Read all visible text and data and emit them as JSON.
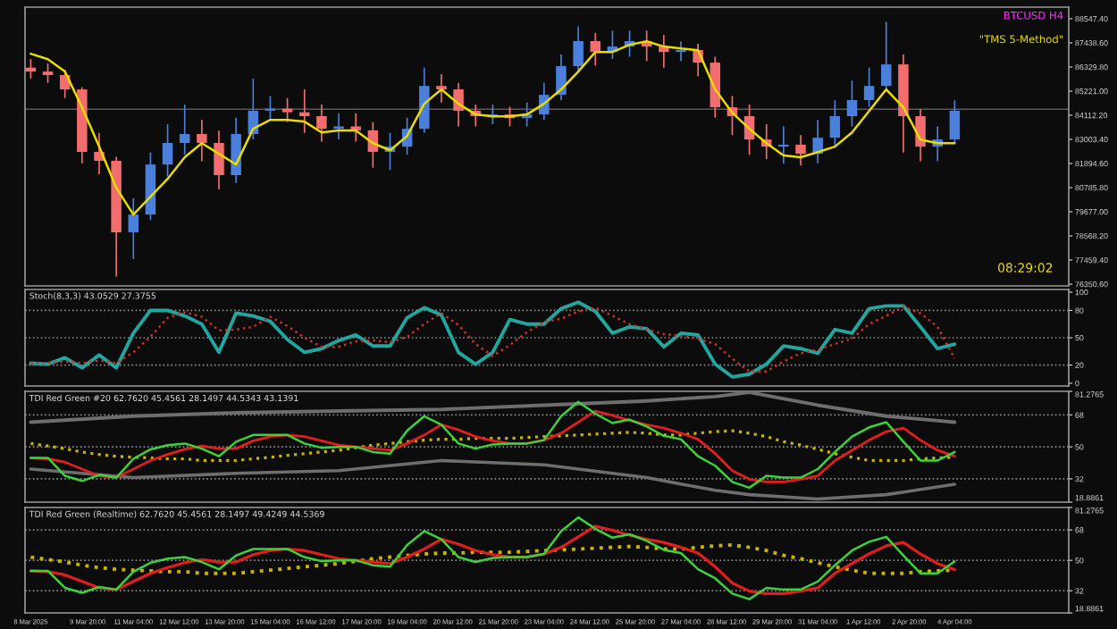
{
  "chart_data": [
    {
      "type": "candlestick",
      "x": [
        "2025-03-08T04:00",
        "2025-03-08T16:00",
        "2025-03-09T04:00",
        "2025-03-09T16:00",
        "2025-03-10T04:00",
        "2025-03-10T16:00",
        "2025-03-11T04:00",
        "2025-03-11T16:00",
        "2025-03-12T04:00",
        "2025-03-12T16:00",
        "2025-03-13T04:00",
        "2025-03-13T16:00",
        "2025-03-14T04:00",
        "2025-03-14T16:00",
        "2025-03-15T04:00",
        "2025-03-15T16:00",
        "2025-03-16T04:00",
        "2025-03-16T16:00",
        "2025-03-17T04:00",
        "2025-03-17T16:00",
        "2025-03-18T04:00",
        "2025-03-18T16:00",
        "2025-03-19T04:00",
        "2025-03-19T16:00",
        "2025-03-20T04:00",
        "2025-03-20T16:00",
        "2025-03-21T04:00",
        "2025-03-21T16:00",
        "2025-03-22T04:00",
        "2025-03-22T16:00",
        "2025-03-23T04:00",
        "2025-03-23T16:00",
        "2025-03-24T04:00",
        "2025-03-24T16:00",
        "2025-03-25T04:00",
        "2025-03-25T16:00",
        "2025-03-26T04:00",
        "2025-03-26T16:00",
        "2025-03-27T04:00",
        "2025-03-27T16:00",
        "2025-03-28T04:00",
        "2025-03-28T16:00",
        "2025-03-29T04:00",
        "2025-03-29T16:00",
        "2025-03-30T04:00",
        "2025-03-30T16:00",
        "2025-03-31T04:00",
        "2025-03-31T16:00",
        "2025-04-01T04:00",
        "2025-04-01T16:00",
        "2025-04-02T04:00",
        "2025-04-02T16:00",
        "2025-04-03T04:00",
        "2025-04-03T16:00",
        "2025-04-04T04:00"
      ],
      "ohlc": [
        [
          86300,
          86700,
          85800,
          86120
        ],
        [
          86120,
          86500,
          85600,
          85960
        ],
        [
          85960,
          86200,
          84900,
          85300
        ],
        [
          85300,
          85400,
          81900,
          82430
        ],
        [
          82430,
          83300,
          81400,
          82020
        ],
        [
          82020,
          82200,
          76700,
          78730
        ],
        [
          78730,
          80300,
          77500,
          79550
        ],
        [
          79550,
          82400,
          79300,
          81850
        ],
        [
          81850,
          83700,
          81300,
          82840
        ],
        [
          82840,
          84600,
          82300,
          83250
        ],
        [
          83250,
          83900,
          82000,
          82840
        ],
        [
          82840,
          83400,
          80700,
          81360
        ],
        [
          81360,
          84000,
          81000,
          83250
        ],
        [
          83250,
          85800,
          83000,
          84320
        ],
        [
          84320,
          85000,
          83900,
          84420
        ],
        [
          84420,
          84900,
          83800,
          84250
        ],
        [
          84250,
          85300,
          83300,
          84070
        ],
        [
          84070,
          84600,
          82900,
          83490
        ],
        [
          83490,
          84200,
          83000,
          83600
        ],
        [
          83600,
          84200,
          82900,
          83420
        ],
        [
          83420,
          83800,
          81700,
          82430
        ],
        [
          82430,
          83300,
          81600,
          82670
        ],
        [
          82670,
          84000,
          82300,
          83490
        ],
        [
          83490,
          86300,
          83300,
          85460
        ],
        [
          85460,
          86000,
          84700,
          85300
        ],
        [
          85300,
          85600,
          83600,
          84320
        ],
        [
          84320,
          84600,
          83600,
          84070
        ],
        [
          84070,
          84600,
          83700,
          84150
        ],
        [
          84150,
          84500,
          83600,
          83980
        ],
        [
          83980,
          84700,
          83600,
          84150
        ],
        [
          84150,
          85600,
          83900,
          85050
        ],
        [
          85050,
          86900,
          84800,
          86370
        ],
        [
          86370,
          88200,
          86100,
          87520
        ],
        [
          87520,
          87900,
          86400,
          87020
        ],
        [
          87020,
          88000,
          86700,
          87270
        ],
        [
          87270,
          88000,
          86800,
          87520
        ],
        [
          87520,
          88000,
          86600,
          87270
        ],
        [
          87270,
          87800,
          86300,
          87020
        ],
        [
          87020,
          87500,
          86600,
          87110
        ],
        [
          87110,
          87400,
          85900,
          86530
        ],
        [
          86530,
          86800,
          84000,
          84480
        ],
        [
          84480,
          85000,
          83200,
          84070
        ],
        [
          84070,
          84600,
          82300,
          83000
        ],
        [
          83000,
          83700,
          82100,
          82670
        ],
        [
          82670,
          83600,
          81900,
          82760
        ],
        [
          82760,
          83200,
          81800,
          82340
        ],
        [
          82340,
          83900,
          81900,
          83080
        ],
        [
          83080,
          84800,
          82700,
          84070
        ],
        [
          84070,
          85700,
          83600,
          84810
        ],
        [
          84810,
          86300,
          84500,
          85460
        ],
        [
          85460,
          88400,
          85200,
          86450
        ],
        [
          86450,
          86900,
          82400,
          84070
        ],
        [
          84070,
          84400,
          82000,
          82670
        ],
        [
          82670,
          83600,
          82000,
          83000
        ],
        [
          83000,
          84800,
          82800,
          84320
        ]
      ],
      "colors": [
        "#f26d6d",
        "#f26d6d",
        "#f26d6d",
        "#f26d6d",
        "#f26d6d",
        "#f26d6d",
        "#4a7fdc",
        "#4a7fdc",
        "#4a7fdc",
        "#4a7fdc",
        "#f26d6d",
        "#f26d6d",
        "#4a7fdc",
        "#4a7fdc",
        "#4a7fdc",
        "#f26d6d",
        "#f26d6d",
        "#f26d6d",
        "#4a7fdc",
        "#f26d6d",
        "#f26d6d",
        "#4a7fdc",
        "#4a7fdc",
        "#4a7fdc",
        "#f26d6d",
        "#f26d6d",
        "#f26d6d",
        "#4a7fdc",
        "#f26d6d",
        "#4a7fdc",
        "#4a7fdc",
        "#4a7fdc",
        "#4a7fdc",
        "#f26d6d",
        "#4a7fdc",
        "#4a7fdc",
        "#f26d6d",
        "#f26d6d",
        "#4a7fdc",
        "#f26d6d",
        "#f26d6d",
        "#f26d6d",
        "#f26d6d",
        "#f26d6d",
        "#4a7fdc",
        "#f26d6d",
        "#4a7fdc",
        "#4a7fdc",
        "#4a7fdc",
        "#4a7fdc",
        "#4a7fdc",
        "#f26d6d",
        "#f26d6d",
        "#4a7fdc",
        "#4a7fdc"
      ],
      "series": [
        {
          "type": "line",
          "color": "#e8dc00",
          "values": [
            86940,
            86690,
            86120,
            84470,
            82670,
            80780,
            79550,
            80370,
            81190,
            82180,
            82830,
            82340,
            81850,
            83490,
            83900,
            83900,
            83820,
            83320,
            83410,
            83410,
            82830,
            82500,
            83160,
            84640,
            85300,
            84640,
            84150,
            84060,
            84060,
            84150,
            84640,
            85300,
            86120,
            87020,
            87020,
            87350,
            87510,
            87270,
            87180,
            87100,
            85300,
            84230,
            83490,
            82830,
            82260,
            82180,
            82420,
            82670,
            83320,
            84310,
            85300,
            84480,
            82990,
            82830,
            82830
          ]
        }
      ],
      "xlim": [
        "2025-03-08T00:00",
        "2025-04-07T12:00"
      ],
      "ylim": [
        76270,
        89080
      ],
      "yticks": [
        {
          "value": 76350.6,
          "label": "76350.60"
        },
        {
          "value": 77459.4,
          "label": "77459.40"
        },
        {
          "value": 78568.2,
          "label": "78568.20"
        },
        {
          "value": 79677.0,
          "label": "79677.00"
        },
        {
          "value": 80785.8,
          "label": "80785.80"
        },
        {
          "value": 81894.6,
          "label": "81894.60"
        },
        {
          "value": 83003.4,
          "label": "83003.40"
        },
        {
          "value": 84112.2,
          "label": "84112.20"
        },
        {
          "value": 85221.0,
          "label": "85221.00"
        },
        {
          "value": 86329.8,
          "label": "86329.80"
        },
        {
          "value": 87438.6,
          "label": "87438.60"
        },
        {
          "value": 88547.4,
          "label": "88547.40"
        }
      ],
      "ref_lines": [
        {
          "axis": "y",
          "value": 84390,
          "color": "#5a5a5a"
        }
      ],
      "tick_labels": "y",
      "annotations": [
        "BTCUSD H4",
        "\"TMS 5-Method\"",
        "08:29:02"
      ]
    },
    {
      "type": "line",
      "title": "Stoch(8,3,3) 43.0529 27.3755",
      "x": [
        "2025-03-08T04:00",
        "2025-03-08T16:00",
        "2025-03-09T04:00",
        "2025-03-09T16:00",
        "2025-03-10T04:00",
        "2025-03-10T16:00",
        "2025-03-11T04:00",
        "2025-03-11T16:00",
        "2025-03-12T04:00",
        "2025-03-12T16:00",
        "2025-03-13T04:00",
        "2025-03-13T16:00",
        "2025-03-14T04:00",
        "2025-03-14T16:00",
        "2025-03-15T04:00",
        "2025-03-15T16:00",
        "2025-03-16T04:00",
        "2025-03-16T16:00",
        "2025-03-17T04:00",
        "2025-03-17T16:00",
        "2025-03-18T04:00",
        "2025-03-18T16:00",
        "2025-03-19T04:00",
        "2025-03-19T16:00",
        "2025-03-20T04:00",
        "2025-03-20T16:00",
        "2025-03-21T04:00",
        "2025-03-21T16:00",
        "2025-03-22T04:00",
        "2025-03-22T16:00",
        "2025-03-23T04:00",
        "2025-03-23T16:00",
        "2025-03-24T04:00",
        "2025-03-24T16:00",
        "2025-03-25T04:00",
        "2025-03-25T16:00",
        "2025-03-26T04:00",
        "2025-03-26T16:00",
        "2025-03-27T04:00",
        "2025-03-27T16:00",
        "2025-03-28T04:00",
        "2025-03-28T16:00",
        "2025-03-29T04:00",
        "2025-03-29T16:00",
        "2025-03-30T04:00",
        "2025-03-30T16:00",
        "2025-03-31T04:00",
        "2025-03-31T16:00",
        "2025-04-01T04:00",
        "2025-04-01T16:00",
        "2025-04-02T04:00",
        "2025-04-02T16:00",
        "2025-04-03T04:00",
        "2025-04-03T16:00",
        "2025-04-04T04:00"
      ],
      "series": [
        {
          "color": "#22a6a0",
          "values": [
            22,
            21,
            28,
            17,
            31,
            17,
            55,
            80,
            80,
            74,
            65,
            34,
            77,
            74,
            68,
            48,
            34,
            38,
            47,
            53,
            41,
            41,
            72,
            83,
            75,
            34,
            21,
            34,
            70,
            65,
            65,
            82,
            89,
            79,
            55,
            62,
            60,
            40,
            55,
            53,
            21,
            7,
            10,
            21,
            41,
            38,
            33,
            59,
            55,
            82,
            85,
            85,
            62,
            38,
            43
          ]
        },
        {
          "color": "#d0302a",
          "line_style": "dotted",
          "values": [
            22,
            22,
            24,
            22,
            25,
            22,
            34,
            51,
            72,
            78,
            73,
            58,
            59,
            62,
            73,
            63,
            50,
            40,
            40,
            46,
            47,
            45,
            51,
            65,
            77,
            64,
            43,
            30,
            42,
            56,
            67,
            71,
            79,
            83,
            74,
            65,
            59,
            54,
            52,
            49,
            43,
            27,
            13,
            13,
            24,
            33,
            37,
            43,
            49,
            65,
            74,
            84,
            77,
            62,
            27
          ]
        }
      ],
      "xlim": [
        "2025-03-08T00:00",
        "2025-04-07T12:00"
      ],
      "ylim": [
        -3,
        103
      ],
      "yticks": [
        0,
        20,
        50,
        80,
        100
      ],
      "ref_lines": [
        {
          "axis": "y",
          "value": 20,
          "color": "#8a8a8a",
          "line_style": "dotted"
        },
        {
          "axis": "y",
          "value": 50,
          "color": "#8a8a8a",
          "line_style": "dotted"
        },
        {
          "axis": "y",
          "value": 80,
          "color": "#8a8a8a",
          "line_style": "dotted"
        }
      ],
      "tick_labels": "y"
    },
    {
      "type": "line",
      "title": "TDI Red Green #20 62.7620 45.4561 28.1497 44.5343 43.1391",
      "x": [
        "2025-03-08T04:00",
        "2025-03-08T16:00",
        "2025-03-09T04:00",
        "2025-03-09T16:00",
        "2025-03-10T04:00",
        "2025-03-10T16:00",
        "2025-03-11T04:00",
        "2025-03-11T16:00",
        "2025-03-12T04:00",
        "2025-03-12T16:00",
        "2025-03-13T04:00",
        "2025-03-13T16:00",
        "2025-03-14T04:00",
        "2025-03-14T16:00",
        "2025-03-15T04:00",
        "2025-03-15T16:00",
        "2025-03-16T04:00",
        "2025-03-16T16:00",
        "2025-03-17T04:00",
        "2025-03-17T16:00",
        "2025-03-18T04:00",
        "2025-03-18T16:00",
        "2025-03-19T04:00",
        "2025-03-19T16:00",
        "2025-03-20T04:00",
        "2025-03-20T16:00",
        "2025-03-21T04:00",
        "2025-03-21T16:00",
        "2025-03-22T04:00",
        "2025-03-22T16:00",
        "2025-03-23T04:00",
        "2025-03-23T16:00",
        "2025-03-24T04:00",
        "2025-03-24T16:00",
        "2025-03-25T04:00",
        "2025-03-25T16:00",
        "2025-03-26T04:00",
        "2025-03-26T16:00",
        "2025-03-27T04:00",
        "2025-03-27T16:00",
        "2025-03-28T04:00",
        "2025-03-28T16:00",
        "2025-03-29T04:00",
        "2025-03-29T16:00",
        "2025-03-30T04:00",
        "2025-03-30T16:00",
        "2025-03-31T04:00",
        "2025-03-31T16:00",
        "2025-04-01T04:00",
        "2025-04-01T16:00",
        "2025-04-02T04:00",
        "2025-04-02T16:00",
        "2025-04-03T04:00",
        "2025-04-03T16:00",
        "2025-04-04T04:00"
      ],
      "series": [
        {
          "color": "#6e6e6e",
          "x": [
            "2025-03-08T04:00",
            "2025-03-11T04:00",
            "2025-03-14T04:00",
            "2025-03-17T04:00",
            "2025-03-20T04:00",
            "2025-03-23T04:00",
            "2025-03-26T04:00",
            "2025-03-28T04:00",
            "2025-03-29T04:00",
            "2025-03-31T04:00",
            "2025-04-02T04:00",
            "2025-04-04T04:00"
          ],
          "values": [
            63.9,
            67.3,
            69.2,
            70.2,
            71.1,
            73.5,
            75.9,
            78.3,
            80.7,
            73.5,
            67.3,
            63.9
          ]
        },
        {
          "color": "#6e6e6e",
          "x": [
            "2025-03-08T04:00",
            "2025-03-11T04:00",
            "2025-03-14T04:00",
            "2025-03-17T04:00",
            "2025-03-20T04:00",
            "2025-03-23T04:00",
            "2025-03-26T04:00",
            "2025-03-28T04:00",
            "2025-03-29T04:00",
            "2025-03-31T04:00",
            "2025-04-02T04:00",
            "2025-04-04T04:00"
          ],
          "values": [
            37.5,
            32.7,
            35.1,
            36.6,
            42.3,
            39.9,
            32.7,
            25.5,
            23.1,
            20.7,
            23.1,
            28.9
          ]
        },
        {
          "color": "#c8b400",
          "line_style": "dotted",
          "values": [
            51.9,
            50.5,
            49,
            47.1,
            45.7,
            44.7,
            44.2,
            43.8,
            43.3,
            43.3,
            42.3,
            42.3,
            42.3,
            43.3,
            44.2,
            45.2,
            46.2,
            47.1,
            48.1,
            49.5,
            51,
            51.9,
            52.9,
            53.8,
            54.3,
            54.3,
            54.8,
            54.8,
            54.8,
            55.3,
            55.8,
            56.2,
            56.7,
            57.2,
            57.7,
            58.2,
            57.7,
            56.7,
            56.7,
            57.7,
            58.6,
            59.1,
            57.7,
            55.8,
            52.9,
            51,
            48.6,
            46.2,
            44.2,
            42.3,
            42.3,
            42.3,
            43.3,
            43.8,
            44.2
          ]
        },
        {
          "color": "#e01e1e",
          "values": [
            43.8,
            43.3,
            41.4,
            37.5,
            33.7,
            32.7,
            37.5,
            42.3,
            45.7,
            48.6,
            50.5,
            49,
            49,
            53.4,
            55.8,
            56.7,
            55.8,
            53.4,
            51,
            50,
            49,
            48.1,
            51.9,
            56.7,
            62.5,
            59.6,
            55.8,
            53.4,
            51.9,
            51.9,
            53.8,
            57.7,
            63.9,
            70.2,
            67.8,
            64.9,
            62.5,
            60.6,
            57.7,
            54.3,
            46.2,
            36.6,
            31.8,
            30.3,
            30.3,
            31.8,
            33.7,
            42.3,
            48.1,
            53.8,
            58.6,
            60.6,
            53.8,
            48.1,
            44.7
          ]
        },
        {
          "color": "#3cd23c",
          "values": [
            43.8,
            43.8,
            33.7,
            30.8,
            34.2,
            32.7,
            43.3,
            48.6,
            51,
            51.9,
            49,
            44.7,
            52.9,
            56.7,
            56.7,
            56.7,
            51.9,
            49.5,
            50,
            50,
            47.1,
            46.2,
            59.1,
            67.3,
            62.5,
            51.9,
            49,
            51.4,
            51.9,
            51.9,
            53.8,
            67.3,
            75.4,
            68.7,
            63.4,
            65.4,
            61.5,
            56.2,
            54.3,
            44.7,
            39.4,
            30.3,
            27,
            33.7,
            32.7,
            32.7,
            37.5,
            47.1,
            55.8,
            61,
            63.9,
            52.9,
            42.3,
            42.3,
            47.1
          ]
        }
      ],
      "xlim": [
        "2025-03-08T00:00",
        "2025-04-07T12:00"
      ],
      "ylim": [
        18.8861,
        81.2765
      ],
      "yticks": [
        18.8861,
        32,
        50,
        68,
        81.2765
      ],
      "ref_lines": [
        {
          "axis": "y",
          "value": 32,
          "color": "#8a8a8a",
          "line_style": "dotted"
        },
        {
          "axis": "y",
          "value": 50,
          "color": "#8a8a8a",
          "line_style": "dotted"
        },
        {
          "axis": "y",
          "value": 68,
          "color": "#8a8a8a",
          "line_style": "dotted"
        }
      ],
      "tick_labels": "y"
    },
    {
      "type": "line",
      "title": "TDI Red Green (Realtime) 62.7620 45.4561 28.1497 49.4249 44.5369",
      "x": [
        "2025-03-08T04:00",
        "2025-03-08T16:00",
        "2025-03-09T04:00",
        "2025-03-09T16:00",
        "2025-03-10T04:00",
        "2025-03-10T16:00",
        "2025-03-11T04:00",
        "2025-03-11T16:00",
        "2025-03-12T04:00",
        "2025-03-12T16:00",
        "2025-03-13T04:00",
        "2025-03-13T16:00",
        "2025-03-14T04:00",
        "2025-03-14T16:00",
        "2025-03-15T04:00",
        "2025-03-15T16:00",
        "2025-03-16T04:00",
        "2025-03-16T16:00",
        "2025-03-17T04:00",
        "2025-03-17T16:00",
        "2025-03-18T04:00",
        "2025-03-18T16:00",
        "2025-03-19T04:00",
        "2025-03-19T16:00",
        "2025-03-20T04:00",
        "2025-03-20T16:00",
        "2025-03-21T04:00",
        "2025-03-21T16:00",
        "2025-03-22T04:00",
        "2025-03-22T16:00",
        "2025-03-23T04:00",
        "2025-03-23T16:00",
        "2025-03-24T04:00",
        "2025-03-24T16:00",
        "2025-03-25T04:00",
        "2025-03-25T16:00",
        "2025-03-26T04:00",
        "2025-03-26T16:00",
        "2025-03-27T04:00",
        "2025-03-27T16:00",
        "2025-03-28T04:00",
        "2025-03-28T16:00",
        "2025-03-29T04:00",
        "2025-03-29T16:00",
        "2025-03-30T04:00",
        "2025-03-30T16:00",
        "2025-03-31T04:00",
        "2025-03-31T16:00",
        "2025-04-01T04:00",
        "2025-04-01T16:00",
        "2025-04-02T04:00",
        "2025-04-02T16:00",
        "2025-04-03T04:00",
        "2025-04-03T16:00",
        "2025-04-04T04:00"
      ],
      "series": [
        {
          "color": "#c8b400",
          "line_style": "dotted",
          "values": [
            51.9,
            50.5,
            49,
            47.1,
            45.7,
            44.7,
            44.2,
            43.8,
            43.3,
            43.3,
            42.3,
            42.3,
            42.3,
            43.3,
            44.2,
            45.2,
            46.2,
            47.1,
            48.1,
            49.5,
            51,
            51.9,
            52.9,
            53.8,
            54.3,
            54.3,
            54.8,
            54.8,
            54.8,
            55.3,
            55.8,
            56.2,
            56.7,
            57.2,
            57.7,
            58.2,
            57.7,
            56.7,
            56.7,
            57.7,
            58.6,
            59.1,
            57.7,
            55.8,
            52.9,
            51,
            48.6,
            46.2,
            44.2,
            42.3,
            42.3,
            42.3,
            43.3,
            43.8,
            44.2
          ]
        },
        {
          "color": "#e01e1e",
          "values": [
            43.8,
            43.3,
            41.4,
            37.5,
            33.7,
            32.7,
            37.5,
            42.3,
            45.7,
            48.6,
            50.5,
            49,
            49,
            53.4,
            55.8,
            56.7,
            55.8,
            53.4,
            51,
            50,
            49,
            48.1,
            51.9,
            56.7,
            62.5,
            59.6,
            55.8,
            53.4,
            51.9,
            51.9,
            53.8,
            57.7,
            63.9,
            70.2,
            67.8,
            64.9,
            62.5,
            60.6,
            57.7,
            54.3,
            46.2,
            36.6,
            31.8,
            30.3,
            30.3,
            31.8,
            33.7,
            42.3,
            48.1,
            53.8,
            58.6,
            60.6,
            53.8,
            48.1,
            44.5
          ]
        },
        {
          "color": "#3cd23c",
          "values": [
            43.8,
            43.8,
            33.7,
            30.8,
            34.2,
            32.7,
            43.3,
            48.6,
            51,
            51.9,
            49,
            44.7,
            52.9,
            56.7,
            56.7,
            56.7,
            51.9,
            49.5,
            50,
            50,
            47.1,
            46.2,
            59.1,
            67.3,
            62.5,
            51.9,
            49,
            51.4,
            51.9,
            51.9,
            53.8,
            67.3,
            75.4,
            68.7,
            63.4,
            65.4,
            61.5,
            56.2,
            54.3,
            44.7,
            39.4,
            30.3,
            27,
            33.7,
            32.7,
            32.7,
            37.5,
            47.1,
            55.8,
            61,
            63.9,
            52.9,
            42.3,
            42.3,
            49.4
          ]
        }
      ],
      "xlim": [
        "2025-03-08T00:00",
        "2025-04-07T12:00"
      ],
      "ylim": [
        18.8861,
        81.2765
      ],
      "yticks": [
        18.8861,
        32,
        50,
        68,
        81.2765
      ],
      "xticks": [
        {
          "value": "2025-03-08T04:00",
          "label": "8 Mar 2025"
        },
        {
          "value": "2025-03-09T20:00",
          "label": "9 Mar 20:00"
        },
        {
          "value": "2025-03-11T04:00",
          "label": "11 Mar 04:00"
        },
        {
          "value": "2025-03-12T12:00",
          "label": "12 Mar 12:00"
        },
        {
          "value": "2025-03-13T20:00",
          "label": "13 Mar 20:00"
        },
        {
          "value": "2025-03-15T04:00",
          "label": "15 Mar 04:00"
        },
        {
          "value": "2025-03-16T12:00",
          "label": "16 Mar 12:00"
        },
        {
          "value": "2025-03-17T20:00",
          "label": "17 Mar 20:00"
        },
        {
          "value": "2025-03-19T04:00",
          "label": "19 Mar 04:00"
        },
        {
          "value": "2025-03-20T12:00",
          "label": "20 Mar 12:00"
        },
        {
          "value": "2025-03-21T20:00",
          "label": "21 Mar 20:00"
        },
        {
          "value": "2025-03-23T04:00",
          "label": "23 Mar 04:00"
        },
        {
          "value": "2025-03-24T12:00",
          "label": "24 Mar 12:00"
        },
        {
          "value": "2025-03-25T20:00",
          "label": "25 Mar 20:00"
        },
        {
          "value": "2025-03-27T04:00",
          "label": "27 Mar 04:00"
        },
        {
          "value": "2025-03-28T12:00",
          "label": "28 Mar 12:00"
        },
        {
          "value": "2025-03-29T20:00",
          "label": "29 Mar 20:00"
        },
        {
          "value": "2025-03-31T04:00",
          "label": "31 Mar 04:00"
        },
        {
          "value": "2025-04-01T12:00",
          "label": "1 Apr 12:00"
        },
        {
          "value": "2025-04-02T20:00",
          "label": "2 Apr 20:00"
        },
        {
          "value": "2025-04-04T04:00",
          "label": "4 Apr 04:00"
        }
      ],
      "ref_lines": [
        {
          "axis": "y",
          "value": 32,
          "color": "#8a8a8a",
          "line_style": "dotted"
        },
        {
          "axis": "y",
          "value": 50,
          "color": "#8a8a8a",
          "line_style": "dotted"
        },
        {
          "axis": "y",
          "value": 68,
          "color": "#8a8a8a",
          "line_style": "dotted"
        }
      ]
    }
  ]
}
